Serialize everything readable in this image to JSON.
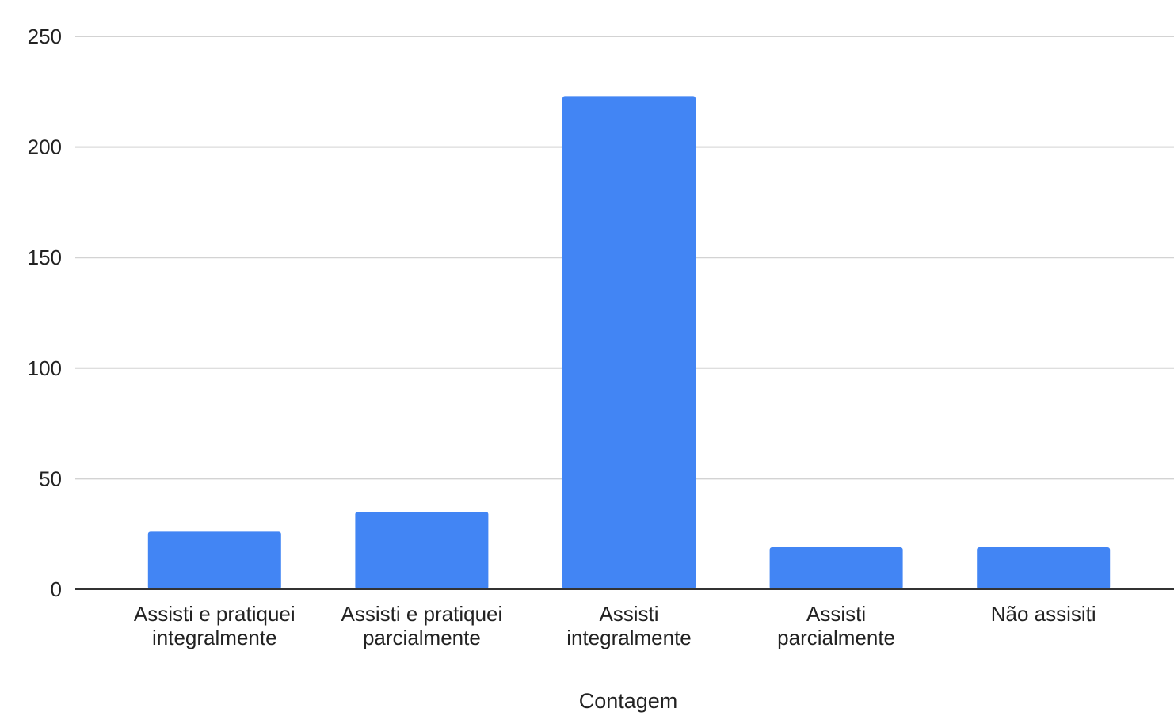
{
  "chart_data": {
    "type": "bar",
    "categories": [
      [
        "Assisti e pratiquei",
        "integralmente"
      ],
      [
        "Assisti e pratiquei",
        "parcialmente"
      ],
      [
        "Assisti",
        "integralmente"
      ],
      [
        "Assisti",
        "parcialmente"
      ],
      [
        "Não assisiti"
      ]
    ],
    "values": [
      26,
      35,
      223,
      19,
      19
    ],
    "xlabel": "Contagem",
    "ylabel": "",
    "ylim": [
      0,
      250
    ],
    "yticks": [
      0,
      50,
      100,
      150,
      200,
      250
    ],
    "grid": true,
    "legend": "none",
    "colors": {
      "bar": "#4285f4",
      "grid": "#d3d3d3",
      "axis": "#333333",
      "text": "#222222"
    }
  }
}
